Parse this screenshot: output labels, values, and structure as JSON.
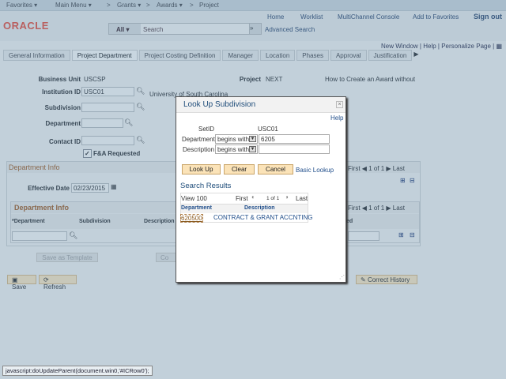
{
  "nav": {
    "favorites": "Favorites ▾",
    "main_menu": "Main Menu ▾",
    "breadcrumbs": [
      "Grants ▾",
      "Awards ▾",
      "Project"
    ]
  },
  "header": {
    "logo": "ORACLE",
    "links": [
      "Home",
      "Worklist",
      "MultiChannel Console",
      "Add to Favorites",
      "Sign out"
    ],
    "search_scope": "All",
    "search_placeholder": "Search",
    "advanced_search": "Advanced Search"
  },
  "pagelinks": [
    "New Window",
    "Help",
    "Personalize Page"
  ],
  "tabs": [
    "General Information",
    "Project Department",
    "Project Costing Definition",
    "Manager",
    "Location",
    "Phases",
    "Approval",
    "Justification"
  ],
  "form": {
    "business_unit_label": "Business Unit",
    "business_unit": "USCSP",
    "project_label": "Project",
    "project": "NEXT",
    "project_desc": "How to Create an Award without",
    "institution_label": "Institution ID",
    "institution": "USC01",
    "institution_desc": "University of South Carolina",
    "subdivision_label": "Subdivision",
    "department_label": "Department",
    "contact_label": "Contact ID",
    "fa_label": "F&A Requested"
  },
  "dept_info": {
    "title": "Department Info",
    "effective_label": "Effective Date",
    "effective_date": "02/23/2015",
    "nav": {
      "first": "First",
      "count": "1 of 1",
      "last": "Last"
    },
    "grid": {
      "title": "Department Info",
      "columns": [
        "*Department",
        "Subdivision",
        "Description"
      ],
      "partial_col": "ed",
      "nav": {
        "first": "First",
        "count": "1 of 1",
        "last": "Last"
      }
    }
  },
  "buttons": {
    "save_template": "Save as Template",
    "co": "Co",
    "save": "Save",
    "refresh": "Refresh",
    "correct_history": "Correct History"
  },
  "modal": {
    "title": "Look Up Subdivision",
    "help": "Help",
    "setid_label": "SetID",
    "setid": "USC01",
    "dept_label": "Department",
    "dept_op": "begins with",
    "dept_value": "6205",
    "desc_label": "Description",
    "desc_op": "begins with",
    "desc_value": "",
    "lookup": "Look Up",
    "clear": "Clear",
    "cancel": "Cancel",
    "basic": "Basic Lookup",
    "results_title": "Search Results",
    "view": "View 100",
    "first": "First",
    "count": "1 of 1",
    "last": "Last",
    "columns": [
      "Department",
      "Description"
    ],
    "rows": [
      {
        "department": "620500",
        "description": "CONTRACT & GRANT ACCNTING"
      }
    ]
  },
  "status_bar": "javascript:doUpdateParent(document.win0,'#ICRow0');"
}
